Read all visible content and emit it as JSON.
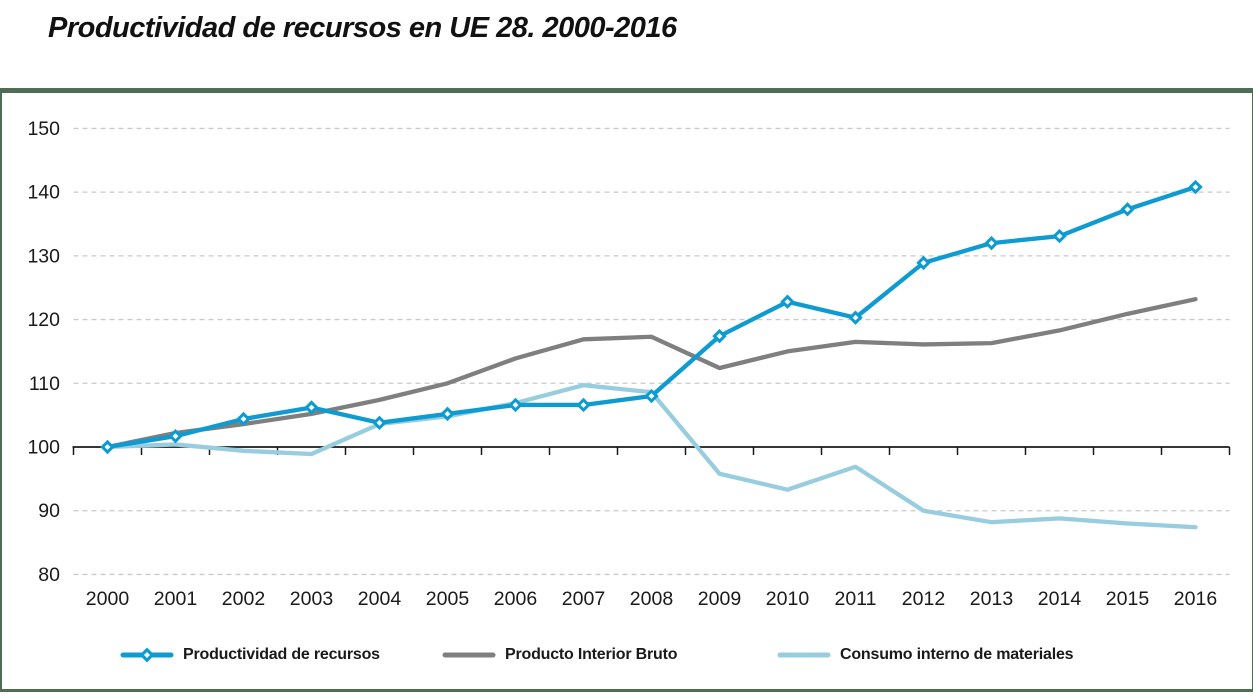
{
  "title": "Productividad de recursos en UE 28. 2000-2016",
  "colors": {
    "productivity": "#0e9bd1",
    "gdp": "#7f7f7f",
    "dmc": "#97cdde",
    "gridline": "#c9c9c9",
    "axis": "#1a1a1a",
    "text": "#1a1a1a",
    "panel_border": "#4d6e54"
  },
  "chart_data": {
    "type": "line",
    "title": "Productividad de recursos en UE 28. 2000-2016",
    "xlabel": "",
    "ylabel": "",
    "categories": [
      "2000",
      "2001",
      "2002",
      "2003",
      "2004",
      "2005",
      "2006",
      "2007",
      "2008",
      "2009",
      "2010",
      "2011",
      "2012",
      "2013",
      "2014",
      "2015",
      "2016"
    ],
    "series": [
      {
        "name": "Productividad de recursos",
        "color": "#0e9bd1",
        "marker": "diamond",
        "values": [
          100.0,
          101.7,
          104.4,
          106.2,
          103.8,
          105.2,
          106.6,
          106.6,
          108.0,
          117.4,
          122.8,
          120.3,
          128.9,
          132.0,
          133.1,
          137.3,
          140.8
        ]
      },
      {
        "name": "Producto Interior Bruto",
        "color": "#7f7f7f",
        "marker": "none",
        "values": [
          100.0,
          102.2,
          103.6,
          105.2,
          107.4,
          110.0,
          113.9,
          116.9,
          117.3,
          112.4,
          115.0,
          116.5,
          116.1,
          116.3,
          118.3,
          120.9,
          123.2
        ]
      },
      {
        "name": "Consumo interno de materiales",
        "color": "#97cdde",
        "marker": "none",
        "values": [
          100.0,
          100.4,
          99.4,
          98.9,
          103.6,
          104.8,
          106.9,
          109.7,
          108.6,
          95.8,
          93.3,
          96.9,
          90.0,
          88.2,
          88.8,
          88.0,
          87.4
        ]
      }
    ],
    "ylim": [
      80,
      150
    ],
    "yticks": [
      80,
      90,
      100,
      110,
      120,
      130,
      140,
      150
    ],
    "baseline": 100,
    "grid": "horizontal-dashed",
    "legend_position": "bottom"
  }
}
